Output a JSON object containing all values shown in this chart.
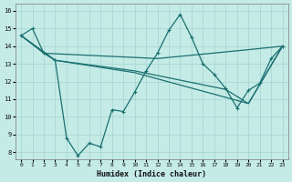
{
  "xlabel": "Humidex (Indice chaleur)",
  "background_color": "#c5ebe7",
  "grid_color": "#a8d8d4",
  "line_color": "#1a7070",
  "xlim": [
    -0.5,
    23.5
  ],
  "ylim": [
    7.6,
    16.4
  ],
  "xticks": [
    0,
    1,
    2,
    3,
    4,
    5,
    6,
    7,
    8,
    9,
    10,
    11,
    12,
    13,
    14,
    15,
    16,
    17,
    18,
    19,
    20,
    21,
    22,
    23
  ],
  "yticks": [
    8,
    9,
    10,
    11,
    12,
    13,
    14,
    15,
    16
  ],
  "line1_x": [
    0,
    1,
    2,
    3,
    4,
    5,
    6,
    7,
    8,
    9,
    10,
    11,
    12,
    13,
    14,
    15,
    16,
    17,
    18,
    19,
    20,
    21,
    22,
    23
  ],
  "line1_y": [
    14.6,
    15.0,
    13.6,
    13.2,
    8.8,
    7.8,
    8.5,
    8.3,
    10.4,
    10.3,
    11.4,
    12.6,
    13.6,
    14.9,
    15.8,
    14.5,
    13.0,
    12.4,
    11.6,
    10.5,
    11.5,
    11.9,
    13.3,
    14.0
  ],
  "line2_x": [
    0,
    2,
    12,
    20,
    23
  ],
  "line2_y": [
    14.6,
    13.6,
    13.3,
    13.8,
    14.0
  ],
  "line3_x": [
    0,
    3,
    10,
    18,
    20,
    23
  ],
  "line3_y": [
    14.6,
    13.2,
    12.6,
    11.55,
    10.75,
    14.0
  ],
  "line4_x": [
    0,
    3,
    10,
    20,
    23
  ],
  "line4_y": [
    14.6,
    13.2,
    12.5,
    10.75,
    14.0
  ]
}
